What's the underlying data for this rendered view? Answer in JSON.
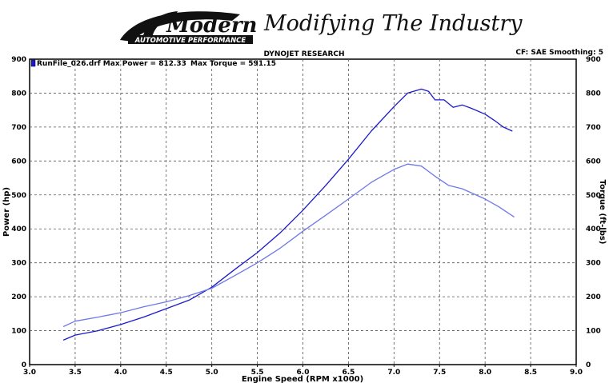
{
  "branding": {
    "logo_word": "Modern",
    "logo_subtitle": "AUTOMOTIVE PERFORMANCE",
    "tagline": "Modifying The Industry"
  },
  "header": {
    "center_title": "DYNOJET RESEARCH",
    "right_info": "CF: SAE  Smoothing: 5",
    "run_label": "RunFile_026.drf Max Power = 812.33",
    "torque_label": "Max Torque = 591.15"
  },
  "chart_data": {
    "type": "line",
    "xlabel": "Engine Speed (RPM x1000)",
    "ylabel": "Power (hp)",
    "ylabel_right": "Torque (ft-lbs)",
    "xlim": [
      3.0,
      9.0
    ],
    "ylim": [
      0,
      900
    ],
    "ylim_right": [
      0,
      900
    ],
    "x_ticks": [
      "3.0",
      "3.5",
      "4.0",
      "4.5",
      "5.0",
      "5.5",
      "6.0",
      "6.5",
      "7.0",
      "7.5",
      "8.0",
      "8.5",
      "9.0"
    ],
    "y_ticks": [
      "0",
      "100",
      "200",
      "300",
      "400",
      "500",
      "600",
      "700",
      "800",
      "900"
    ],
    "grid": true,
    "series": [
      {
        "name": "Power",
        "color": "#1a1acc",
        "points": [
          [
            3.37,
            72
          ],
          [
            3.5,
            87
          ],
          [
            3.75,
            100
          ],
          [
            4.0,
            118
          ],
          [
            4.25,
            140
          ],
          [
            4.5,
            165
          ],
          [
            4.75,
            190
          ],
          [
            5.0,
            228
          ],
          [
            5.25,
            280
          ],
          [
            5.5,
            330
          ],
          [
            5.75,
            388
          ],
          [
            6.0,
            455
          ],
          [
            6.25,
            528
          ],
          [
            6.5,
            605
          ],
          [
            6.75,
            688
          ],
          [
            7.0,
            760
          ],
          [
            7.15,
            800
          ],
          [
            7.3,
            812
          ],
          [
            7.38,
            805
          ],
          [
            7.45,
            780
          ],
          [
            7.55,
            780
          ],
          [
            7.65,
            758
          ],
          [
            7.75,
            765
          ],
          [
            7.85,
            755
          ],
          [
            8.0,
            738
          ],
          [
            8.1,
            720
          ],
          [
            8.2,
            700
          ],
          [
            8.3,
            688
          ]
        ]
      },
      {
        "name": "Torque",
        "color": "#6e78e8",
        "points": [
          [
            3.37,
            112
          ],
          [
            3.5,
            128
          ],
          [
            3.75,
            140
          ],
          [
            4.0,
            153
          ],
          [
            4.25,
            170
          ],
          [
            4.5,
            185
          ],
          [
            4.75,
            203
          ],
          [
            5.0,
            225
          ],
          [
            5.25,
            262
          ],
          [
            5.5,
            300
          ],
          [
            5.75,
            343
          ],
          [
            6.0,
            393
          ],
          [
            6.25,
            440
          ],
          [
            6.5,
            488
          ],
          [
            6.75,
            537
          ],
          [
            7.0,
            575
          ],
          [
            7.15,
            591
          ],
          [
            7.3,
            585
          ],
          [
            7.45,
            555
          ],
          [
            7.6,
            528
          ],
          [
            7.75,
            518
          ],
          [
            8.0,
            488
          ],
          [
            8.15,
            465
          ],
          [
            8.32,
            435
          ]
        ]
      }
    ]
  }
}
